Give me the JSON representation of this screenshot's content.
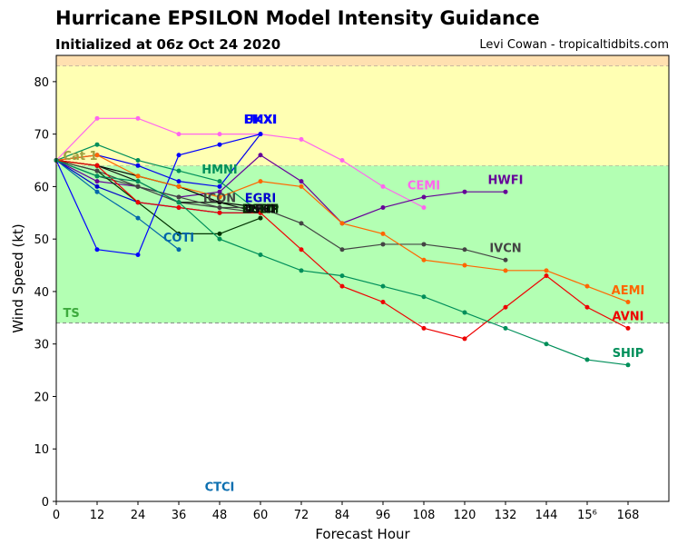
{
  "header": {
    "title": "Hurricane EPSILON Model Intensity Guidance",
    "subtitle": "Initialized at 06z Oct 24 2020",
    "credit": "Levi Cowan - tropicaltidbits.com"
  },
  "chart_data": {
    "type": "line",
    "xlabel": "Forecast Hour",
    "ylabel": "Wind Speed (kt)",
    "xlim": [
      0,
      180
    ],
    "ylim": [
      0,
      85
    ],
    "x_ticks": [
      "0",
      "12",
      "24",
      "36",
      "48",
      "60",
      "72",
      "84",
      "96",
      "108",
      "120",
      "132",
      "144",
      "15⁶",
      "168"
    ],
    "y_ticks": [
      "0",
      "10",
      "20",
      "30",
      "40",
      "50",
      "60",
      "70",
      "80"
    ],
    "bands": [
      {
        "label": "TS",
        "from": 34,
        "to": 64,
        "color": "#b3ffb3",
        "label_color": "#3daa3d"
      },
      {
        "label": "Cat 1",
        "from": 64,
        "to": 83,
        "color": "#ffffb3",
        "label_color": "#a0a040"
      },
      {
        "label": "",
        "from": 83,
        "to": 85,
        "color": "#ffe0b0",
        "label_color": "#000000"
      }
    ],
    "series": [
      {
        "name": "CTCI",
        "color": "#0c6fb0",
        "x": [],
        "y": [],
        "label_x": 48,
        "label_y": 2
      },
      {
        "name": "UKXI",
        "color": "#0000ee",
        "x": [
          0,
          12,
          24,
          36,
          48,
          60
        ],
        "y": [
          65,
          66,
          64,
          61,
          60,
          70
        ],
        "label_x": 60,
        "label_y": 72
      },
      {
        "name": "CEMI",
        "color": "#ff66ee",
        "x": [
          0,
          12,
          24,
          36,
          48,
          60,
          72,
          84,
          96,
          108
        ],
        "y": [
          65,
          73,
          73,
          70,
          70,
          70,
          69,
          65,
          60,
          56
        ],
        "label_x": 108,
        "label_y": 59.5
      },
      {
        "name": "HWFI",
        "color": "#660099",
        "x": [
          0,
          12,
          24,
          36,
          48,
          60,
          72,
          84,
          96,
          108,
          120,
          132
        ],
        "y": [
          65,
          61,
          60,
          58,
          59,
          66,
          61,
          53,
          56,
          58,
          59,
          59
        ],
        "label_x": 132,
        "label_y": 60.5
      },
      {
        "name": "HMNI",
        "color": "#008f5a",
        "x": [
          0,
          12,
          24,
          36,
          48,
          60
        ],
        "y": [
          65,
          68,
          65,
          63,
          61,
          55
        ],
        "label_x": 48,
        "label_y": 62.5
      },
      {
        "name": "ICON",
        "color": "#444444",
        "x": [
          0,
          12,
          24,
          36,
          48,
          60
        ],
        "y": [
          65,
          62,
          60,
          57,
          56,
          55
        ],
        "label_x": 48,
        "label_y": 57
      },
      {
        "name": "EGRI",
        "color": "#0000cc",
        "x": [
          0,
          12,
          24,
          36,
          48,
          60
        ],
        "y": [
          65,
          60,
          57,
          56,
          55,
          55
        ],
        "label_x": 60,
        "label_y": 57
      },
      {
        "name": "DSHP",
        "color": "#000000",
        "x": [
          0,
          12,
          24,
          36,
          48,
          60
        ],
        "y": [
          65,
          64,
          62,
          60,
          57,
          56
        ],
        "label_x": 60,
        "label_y": 55
      },
      {
        "name": "LGEM",
        "color": "#003300",
        "x": [
          0,
          12,
          24,
          36,
          48,
          60
        ],
        "y": [
          65,
          63,
          57,
          51,
          51,
          54
        ],
        "label_x": 60,
        "label_y": 55
      },
      {
        "name": "OFCI",
        "color": "#111111",
        "x": [
          0,
          12,
          24,
          36,
          48,
          60
        ],
        "y": [
          65,
          64,
          61,
          57,
          57,
          55
        ],
        "label_x": 60,
        "label_y": 55
      },
      {
        "name": "COTI",
        "color": "#0066aa",
        "x": [
          0,
          12,
          24,
          36
        ],
        "y": [
          65,
          59,
          54,
          48
        ],
        "label_x": 36,
        "label_y": 49.5
      },
      {
        "name": "EMXI",
        "color": "#0000ff",
        "x": [
          0,
          12,
          24,
          36,
          48,
          60
        ],
        "y": [
          65,
          48,
          47,
          66,
          68,
          70
        ],
        "label_x": 60,
        "label_y": 72
      },
      {
        "name": "IVCN",
        "color": "#444444",
        "x": [
          0,
          12,
          24,
          36,
          48,
          60,
          72,
          84,
          96,
          108,
          120,
          132
        ],
        "y": [
          65,
          63,
          60,
          58,
          56,
          56,
          53,
          48,
          49,
          49,
          48,
          46
        ],
        "label_x": 132,
        "label_y": 47.5
      },
      {
        "name": "AEMI",
        "color": "#ff6600",
        "x": [
          0,
          12,
          24,
          36,
          48,
          60,
          72,
          84,
          96,
          108,
          120,
          132,
          144,
          156,
          168
        ],
        "y": [
          65,
          66,
          62,
          60,
          58,
          61,
          60,
          53,
          51,
          46,
          45,
          44,
          44,
          41,
          38
        ],
        "label_x": 168,
        "label_y": 39.5
      },
      {
        "name": "AVNI",
        "color": "#ee0000",
        "x": [
          0,
          12,
          24,
          36,
          48,
          60,
          72,
          84,
          96,
          108,
          120,
          132,
          144,
          156,
          168
        ],
        "y": [
          65,
          64,
          57,
          56,
          55,
          55,
          48,
          41,
          38,
          33,
          31,
          37,
          43,
          37,
          33
        ],
        "label_x": 168,
        "label_y": 34.5
      },
      {
        "name": "SHIP",
        "color": "#008f5a",
        "x": [
          0,
          12,
          24,
          36,
          48,
          60,
          72,
          84,
          96,
          108,
          120,
          132,
          144,
          156,
          168
        ],
        "y": [
          65,
          62,
          61,
          57,
          50,
          47,
          44,
          43,
          41,
          39,
          36,
          33,
          30,
          27,
          26
        ],
        "label_x": 168,
        "label_y": 27.5
      }
    ],
    "band_labels": [
      {
        "text": "Cat 1",
        "x": 2,
        "y": 66
      },
      {
        "text": "TS",
        "x": 2,
        "y": 36
      }
    ]
  }
}
